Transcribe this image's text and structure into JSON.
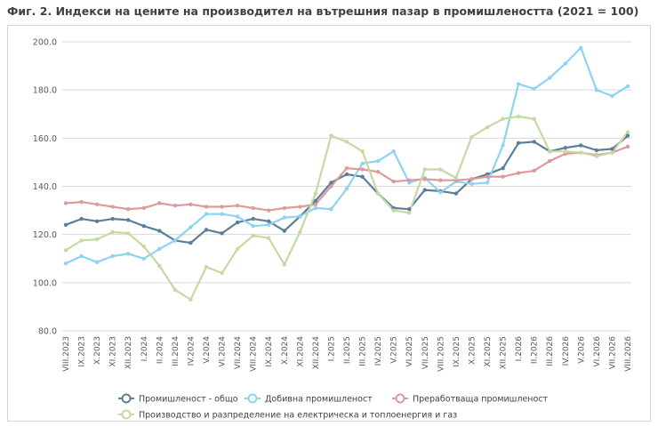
{
  "title": "Фиг. 2. Индекси на цените на производител на вътрешния пазар в промишлеността (2021 = 100)",
  "chart_data": {
    "type": "line",
    "ylim": [
      80,
      200
    ],
    "yticks": [
      "80.0",
      "100.0",
      "120.0",
      "140.0",
      "160.0",
      "180.0",
      "200.0"
    ],
    "grid": "horizontal",
    "legend_position": "bottom",
    "categories": [
      "VIII.2023",
      "IX.2023",
      "X.2023",
      "XI.2023",
      "XII.2023",
      "I.2024",
      "II.2024",
      "III.2024",
      "IV.2024",
      "V.2024",
      "VI.2024",
      "VII.2024",
      "VIII.2024",
      "IX.2024",
      "X.2024",
      "XI.2024",
      "XII.2024",
      "I.2025",
      "II.2025",
      "III.2025",
      "IV.2025",
      "V.2025",
      "VI.2025",
      "VII.2025",
      "VIII.2025",
      "IX.2025",
      "X.2025",
      "XI.2025",
      "XII.2025",
      "I.2026",
      "II.2026",
      "III.2026",
      "IV.2026",
      "V.2026",
      "VI.2026",
      "VII.2026",
      "VIII.2026"
    ],
    "series": [
      {
        "name": "Промишленост - общо",
        "color": "#5b7f99",
        "values": [
          124,
          126.5,
          125.5,
          126.5,
          126,
          123.5,
          121.5,
          117.5,
          116.5,
          122,
          120.5,
          125,
          126.5,
          125.5,
          121.5,
          127.5,
          134,
          141.5,
          145,
          144,
          137,
          131,
          130.5,
          138.5,
          138,
          137,
          143,
          145,
          147.5,
          158,
          158.5,
          154.5,
          156,
          157,
          155,
          155.5,
          161
        ]
      },
      {
        "name": "Добивна промишленост",
        "color": "#8fd3f0",
        "values": [
          108,
          111,
          108.5,
          111,
          112,
          110,
          114,
          117.5,
          123,
          128.5,
          128.5,
          127.5,
          123.5,
          124,
          127,
          127.5,
          131,
          130.5,
          139,
          149.5,
          150.5,
          154.5,
          141.5,
          143.5,
          137.5,
          142,
          141,
          141.5,
          157,
          182.5,
          180.5,
          185,
          191,
          197.5,
          180,
          177.5,
          181.5
        ]
      },
      {
        "name": "Преработваща промишленост",
        "color": "#de9a9a",
        "values": [
          133,
          133.5,
          132.5,
          131.5,
          130.5,
          131,
          133,
          132,
          132.5,
          131.5,
          131.5,
          132,
          131,
          130,
          131,
          131.5,
          132.5,
          140,
          147.5,
          147,
          146,
          142,
          142.5,
          143,
          142.5,
          142.5,
          143,
          144,
          144,
          145.5,
          146.5,
          150.5,
          153.5,
          154,
          153,
          154,
          156.5
        ]
      },
      {
        "name": "Производство и разпределение на електрическа и топлоенергия и газ",
        "color": "#c5d9a3",
        "values": [
          113.5,
          117.5,
          118,
          121,
          120.5,
          115,
          107,
          97,
          93,
          106.5,
          104,
          114,
          119.5,
          118.5,
          107.5,
          121,
          137,
          161,
          158.5,
          154.5,
          137,
          130,
          129,
          147,
          147,
          143.5,
          160.5,
          164.5,
          168,
          169,
          168,
          154.5,
          154.5,
          154,
          152.5,
          154,
          162.5
        ]
      }
    ]
  }
}
